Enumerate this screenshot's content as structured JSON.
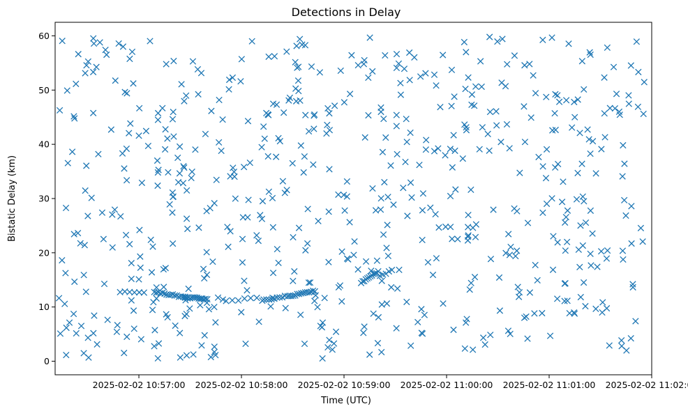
{
  "chart_data": {
    "type": "scatter",
    "title": "Detections in Delay",
    "xlabel": "Time (UTC)",
    "ylabel": "Bistatic Delay (km)",
    "xlim_seconds_after_10_56_00": [
      11,
      360
    ],
    "ylim": [
      -2.5,
      62.5
    ],
    "marker": "x",
    "color": "#1f77b4",
    "grid": false,
    "x_ticks": [
      {
        "label": "2025-02-02 10:57:00",
        "value": 60
      },
      {
        "label": "2025-02-02 10:58:00",
        "value": 120
      },
      {
        "label": "2025-02-02 10:59:00",
        "value": 180
      },
      {
        "label": "2025-02-02 11:00:00",
        "value": 240
      },
      {
        "label": "2025-02-02 11:01:00",
        "value": 300
      },
      {
        "label": "2025-02-02 11:02:00",
        "value": 360
      }
    ],
    "y_ticks": [
      0,
      10,
      20,
      30,
      40,
      50,
      60
    ],
    "track_segments": [
      {
        "from": [
          49,
          12.8
        ],
        "to": [
          63,
          12.6
        ],
        "count": 6
      },
      {
        "from": [
          69,
          12.8
        ],
        "to": [
          87,
          11.8
        ],
        "count": 16
      },
      {
        "from": [
          87,
          11.8
        ],
        "to": [
          100,
          11.5
        ],
        "count": 14
      },
      {
        "from": [
          111,
          11.0
        ],
        "to": [
          129,
          11.8
        ],
        "count": 6
      },
      {
        "from": [
          133,
          11.3
        ],
        "to": [
          147,
          12.0
        ],
        "count": 10
      },
      {
        "from": [
          148,
          12.0
        ],
        "to": [
          163,
          13.0
        ],
        "count": 14
      },
      {
        "from": [
          190,
          14.5
        ],
        "to": [
          200,
          16.5
        ],
        "count": 12
      },
      {
        "from": [
          201,
          15.8
        ],
        "to": [
          208,
          16.7
        ],
        "count": 5
      }
    ],
    "noise_points": 640,
    "noise_x_range": [
      13,
      356
    ],
    "noise_y_range": [
      0.5,
      59.8
    ]
  }
}
